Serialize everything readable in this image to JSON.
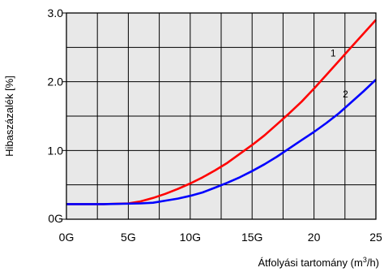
{
  "chart_data": {
    "type": "line",
    "xlabel": "Átfolyási tartomány (m",
    "xlabel_sup": "3",
    "xlabel_end": "/h)",
    "ylabel": "Hibaszázalék [%]",
    "xlim": [
      0,
      25
    ],
    "ylim": [
      0,
      3.0
    ],
    "grid": true,
    "x_ticks": [
      {
        "value": 0,
        "label": "0G"
      },
      {
        "value": 5,
        "label": "5G"
      },
      {
        "value": 10,
        "label": "10G"
      },
      {
        "value": 15,
        "label": "15G"
      },
      {
        "value": 20,
        "label": "20"
      },
      {
        "value": 25,
        "label": "25"
      }
    ],
    "y_ticks": [
      {
        "value": 0,
        "label": "0G"
      },
      {
        "value": 1.0,
        "label": "1.0"
      },
      {
        "value": 2.0,
        "label": "2.0"
      },
      {
        "value": 3.0,
        "label": "3.0"
      }
    ],
    "series": [
      {
        "label": "1",
        "color": "#ff0000",
        "points": [
          [
            0,
            0.22
          ],
          [
            3,
            0.22
          ],
          [
            5,
            0.23
          ],
          [
            6,
            0.26
          ],
          [
            7,
            0.31
          ],
          [
            8,
            0.37
          ],
          [
            9,
            0.44
          ],
          [
            10,
            0.52
          ],
          [
            11,
            0.61
          ],
          [
            12,
            0.71
          ],
          [
            13,
            0.82
          ],
          [
            14,
            0.95
          ],
          [
            15,
            1.08
          ],
          [
            16,
            1.22
          ],
          [
            17,
            1.38
          ],
          [
            18,
            1.54
          ],
          [
            19,
            1.71
          ],
          [
            20,
            1.9
          ],
          [
            21,
            2.1
          ],
          [
            22,
            2.3
          ],
          [
            23,
            2.5
          ],
          [
            24,
            2.7
          ],
          [
            25,
            2.9
          ]
        ]
      },
      {
        "label": "2",
        "color": "#0000ff",
        "points": [
          [
            0,
            0.22
          ],
          [
            3,
            0.22
          ],
          [
            6,
            0.23
          ],
          [
            7,
            0.24
          ],
          [
            8,
            0.27
          ],
          [
            9,
            0.3
          ],
          [
            10,
            0.34
          ],
          [
            11,
            0.39
          ],
          [
            12,
            0.46
          ],
          [
            13,
            0.53
          ],
          [
            14,
            0.61
          ],
          [
            15,
            0.7
          ],
          [
            16,
            0.8
          ],
          [
            17,
            0.91
          ],
          [
            18,
            1.03
          ],
          [
            19,
            1.15
          ],
          [
            20,
            1.27
          ],
          [
            21,
            1.4
          ],
          [
            22,
            1.54
          ],
          [
            23,
            1.7
          ],
          [
            24,
            1.86
          ],
          [
            25,
            2.03
          ]
        ]
      }
    ]
  }
}
